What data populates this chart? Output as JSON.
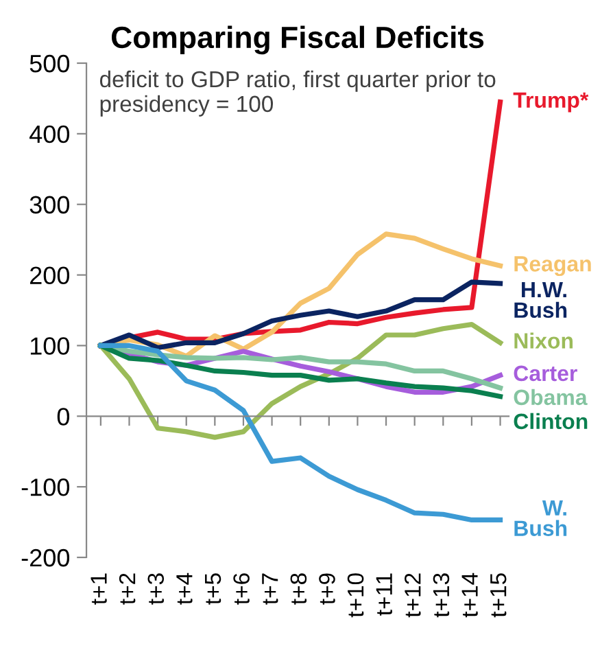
{
  "chart_data": {
    "type": "line",
    "title": "Comparing Fiscal Deficits",
    "annotations": [
      "deficit to GDP ratio, first quarter prior to presidency = 100"
    ],
    "categories": [
      "t+1",
      "t+2",
      "t+3",
      "t+4",
      "t+5",
      "t+6",
      "t+7",
      "t+8",
      "t+9",
      "t+10",
      "t+11",
      "t+12",
      "t+13",
      "t+14",
      "t+15"
    ],
    "ylim": [
      -200,
      500
    ],
    "yticks": [
      -200,
      -100,
      0,
      100,
      200,
      300,
      400,
      500
    ],
    "legend": false,
    "marker": "none",
    "line_style": "solid",
    "series": [
      {
        "name": "Trump*",
        "color": "#e8192c",
        "values": [
          100,
          111,
          119,
          109,
          109,
          117,
          120,
          122,
          133,
          131,
          140,
          146,
          151,
          154,
          445
        ]
      },
      {
        "name": "Reagan",
        "color": "#f5c26b",
        "values": [
          100,
          108,
          101,
          85,
          114,
          95,
          119,
          160,
          181,
          229,
          258,
          252,
          237,
          223,
          213
        ]
      },
      {
        "name": "H.W. Bush",
        "color": "#0b2461",
        "values": [
          100,
          115,
          97,
          104,
          104,
          117,
          135,
          143,
          149,
          141,
          149,
          165,
          165,
          190,
          188
        ]
      },
      {
        "name": "Nixon",
        "color": "#9bbb59",
        "values": [
          100,
          53,
          -17,
          -22,
          -30,
          -22,
          18,
          42,
          60,
          82,
          115,
          115,
          124,
          130,
          104
        ]
      },
      {
        "name": "Carter",
        "color": "#a65ddc",
        "values": [
          100,
          88,
          77,
          72,
          82,
          92,
          81,
          71,
          63,
          53,
          42,
          34,
          34,
          42,
          58
        ]
      },
      {
        "name": "Obama",
        "color": "#84c4a0",
        "values": [
          100,
          92,
          87,
          83,
          82,
          83,
          80,
          83,
          77,
          77,
          74,
          64,
          64,
          53,
          40
        ]
      },
      {
        "name": "Clinton",
        "color": "#0a7f4f",
        "values": [
          100,
          82,
          79,
          72,
          64,
          62,
          58,
          58,
          51,
          53,
          47,
          42,
          40,
          36,
          28
        ]
      },
      {
        "name": "W. Bush",
        "color": "#3c9ad4",
        "values": [
          100,
          100,
          92,
          50,
          37,
          8,
          -64,
          -59,
          -85,
          -104,
          -119,
          -137,
          -139,
          -147,
          -147
        ]
      }
    ]
  }
}
